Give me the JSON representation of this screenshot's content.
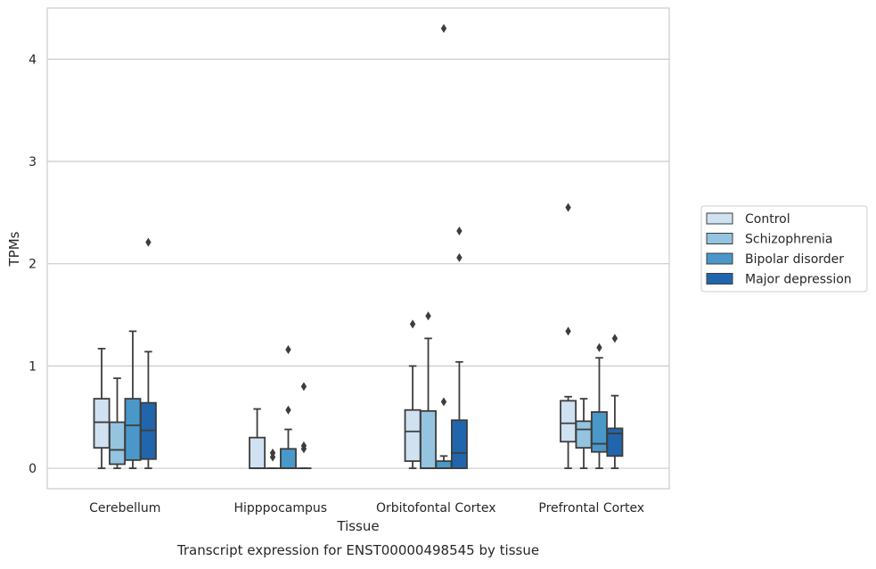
{
  "caption": "Transcript expression for ENST00000498545 by tissue",
  "chart_data": {
    "type": "boxplot",
    "xlabel": "Tissue",
    "ylabel": "TPMs",
    "ylim": [
      -0.2,
      4.5
    ],
    "yticks": [
      0,
      1,
      2,
      3,
      4
    ],
    "grid": true,
    "legend_position": "right-outside",
    "categories": [
      "Cerebellum",
      "Hipppocampus",
      "Orbitofontal Cortex",
      "Prefrontal Cortex"
    ],
    "series": [
      {
        "name": "Control",
        "color": "#d0e1f2",
        "boxes": [
          {
            "whisker_low": 0,
            "q1": 0.2,
            "median": 0.45,
            "q3": 0.68,
            "whisker_high": 1.17,
            "outliers": []
          },
          {
            "whisker_low": 0,
            "q1": 0,
            "median": 0,
            "q3": 0.3,
            "whisker_high": 0.58,
            "outliers": []
          },
          {
            "whisker_low": 0,
            "q1": 0.07,
            "median": 0.36,
            "q3": 0.57,
            "whisker_high": 1.0,
            "outliers": [
              1.41
            ]
          },
          {
            "whisker_low": 0,
            "q1": 0.26,
            "median": 0.44,
            "q3": 0.66,
            "whisker_high": 0.7,
            "outliers": [
              1.34,
              2.55
            ]
          }
        ]
      },
      {
        "name": "Schizophrenia",
        "color": "#94c4df",
        "boxes": [
          {
            "whisker_low": 0,
            "q1": 0.04,
            "median": 0.18,
            "q3": 0.45,
            "whisker_high": 0.88,
            "outliers": []
          },
          {
            "whisker_low": 0,
            "q1": 0,
            "median": 0,
            "q3": 0,
            "whisker_high": 0,
            "outliers": [
              0.11,
              0.15
            ]
          },
          {
            "whisker_low": 0,
            "q1": 0,
            "median": 0,
            "q3": 0.56,
            "whisker_high": 1.27,
            "outliers": [
              1.49
            ]
          },
          {
            "whisker_low": 0,
            "q1": 0.2,
            "median": 0.38,
            "q3": 0.46,
            "whisker_high": 0.68,
            "outliers": []
          }
        ]
      },
      {
        "name": "Bipolar disorder",
        "color": "#4a98c9",
        "boxes": [
          {
            "whisker_low": 0,
            "q1": 0.08,
            "median": 0.42,
            "q3": 0.68,
            "whisker_high": 1.34,
            "outliers": []
          },
          {
            "whisker_low": 0,
            "q1": 0,
            "median": 0,
            "q3": 0.19,
            "whisker_high": 0.38,
            "outliers": [
              0.57,
              1.16
            ]
          },
          {
            "whisker_low": 0,
            "q1": 0,
            "median": 0,
            "q3": 0.07,
            "whisker_high": 0.12,
            "outliers": [
              0.65,
              4.3
            ]
          },
          {
            "whisker_low": 0,
            "q1": 0.16,
            "median": 0.24,
            "q3": 0.55,
            "whisker_high": 1.08,
            "outliers": [
              1.18
            ]
          }
        ]
      },
      {
        "name": "Major depression",
        "color": "#2166ac",
        "boxes": [
          {
            "whisker_low": 0,
            "q1": 0.09,
            "median": 0.37,
            "q3": 0.64,
            "whisker_high": 1.14,
            "outliers": [
              2.21
            ]
          },
          {
            "whisker_low": 0,
            "q1": 0,
            "median": 0,
            "q3": 0,
            "whisker_high": 0,
            "outliers": [
              0.19,
              0.22,
              0.8
            ]
          },
          {
            "whisker_low": 0,
            "q1": 0,
            "median": 0.15,
            "q3": 0.47,
            "whisker_high": 1.04,
            "outliers": [
              2.06,
              2.32
            ]
          },
          {
            "whisker_low": 0,
            "q1": 0.12,
            "median": 0.34,
            "q3": 0.39,
            "whisker_high": 0.71,
            "outliers": [
              1.27
            ]
          }
        ]
      }
    ]
  }
}
